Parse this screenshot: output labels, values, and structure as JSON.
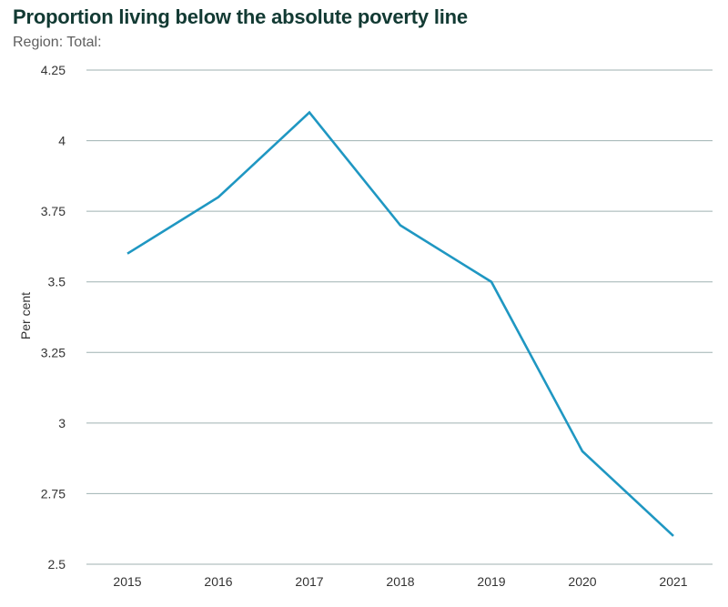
{
  "chart_data": {
    "type": "line",
    "title": "Proportion living below the absolute poverty line",
    "subtitle": "Region: Total:",
    "xlabel": "",
    "ylabel": "Per cent",
    "categories": [
      "2015",
      "2016",
      "2017",
      "2018",
      "2019",
      "2020",
      "2021"
    ],
    "series": [
      {
        "values": [
          3.6,
          3.8,
          4.1,
          3.7,
          3.5,
          2.9,
          2.6
        ],
        "color": "#1f97c2"
      }
    ],
    "ylim": [
      2.5,
      4.25
    ],
    "yticks": [
      2.5,
      2.75,
      3,
      3.25,
      3.5,
      3.75,
      4,
      4.25
    ],
    "ytick_labels": [
      "2.5",
      "2.75",
      "3",
      "3.25",
      "3.5",
      "3.75",
      "4",
      "4.25"
    ],
    "grid": true,
    "legend": "none"
  }
}
